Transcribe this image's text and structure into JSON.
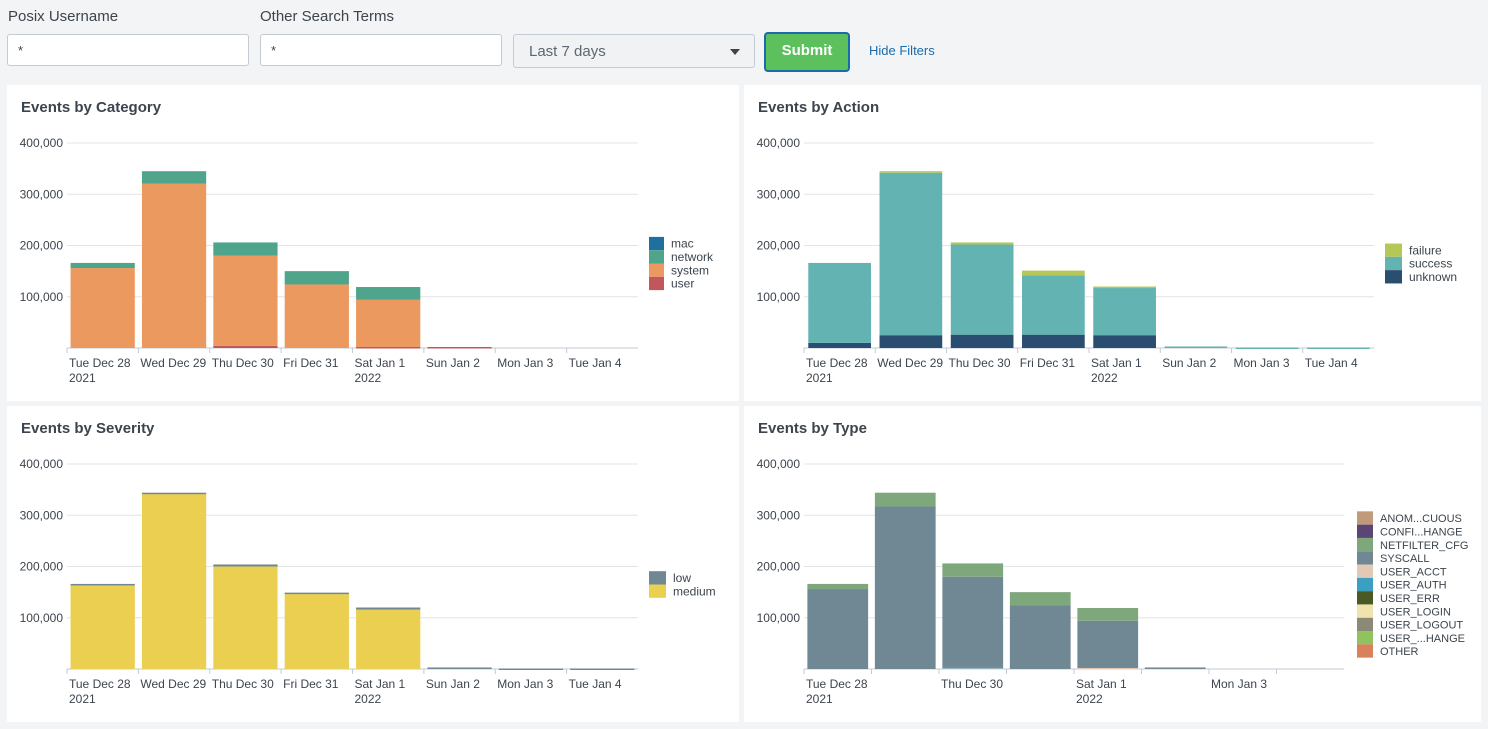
{
  "filters": {
    "username_label": "Posix Username",
    "username_value": "*",
    "search_label": "Other Search Terms",
    "search_value": "*",
    "time_range": "Last 7 days",
    "submit_label": "Submit",
    "hide_filters_label": "Hide Filters"
  },
  "panels": [
    {
      "title": "Events by Category"
    },
    {
      "title": "Events by Action"
    },
    {
      "title": "Events by Severity"
    },
    {
      "title": "Events by Type"
    }
  ],
  "chart_data": [
    {
      "type": "bar",
      "stacked": true,
      "title": "Events by Category",
      "ylim": [
        0,
        400000
      ],
      "yticks": [
        "100,000",
        "200,000",
        "300,000",
        "400,000"
      ],
      "categories": [
        [
          "Tue Dec 28",
          "2021"
        ],
        [
          "Wed Dec 29",
          ""
        ],
        [
          "Thu Dec 30",
          ""
        ],
        [
          "Fri Dec 31",
          ""
        ],
        [
          "Sat Jan 1",
          "2022"
        ],
        [
          "Sun Jan 2",
          ""
        ],
        [
          "Mon Jan 3",
          ""
        ],
        [
          "Tue Jan 4",
          ""
        ]
      ],
      "series": [
        {
          "name": "user",
          "color": "#c1575b",
          "values": [
            0,
            0,
            4000,
            0,
            2000,
            2000,
            0,
            0
          ]
        },
        {
          "name": "system",
          "color": "#ec9960",
          "values": [
            156000,
            321000,
            176000,
            124000,
            92000,
            0,
            0,
            0
          ]
        },
        {
          "name": "network",
          "color": "#4ea58b",
          "values": [
            10000,
            24000,
            26000,
            26000,
            25000,
            0,
            0,
            0
          ]
        },
        {
          "name": "mac",
          "color": "#1f6fa1",
          "values": [
            0,
            0,
            0,
            0,
            0,
            0,
            0,
            0
          ]
        }
      ],
      "legend": [
        "mac",
        "network",
        "system",
        "user"
      ]
    },
    {
      "type": "bar",
      "stacked": true,
      "title": "Events by Action",
      "ylim": [
        0,
        400000
      ],
      "yticks": [
        "100,000",
        "200,000",
        "300,000",
        "400,000"
      ],
      "categories": [
        [
          "Tue Dec 28",
          "2021"
        ],
        [
          "Wed Dec 29",
          ""
        ],
        [
          "Thu Dec 30",
          ""
        ],
        [
          "Fri Dec 31",
          ""
        ],
        [
          "Sat Jan 1",
          "2022"
        ],
        [
          "Sun Jan 2",
          ""
        ],
        [
          "Mon Jan 3",
          ""
        ],
        [
          "Tue Jan 4",
          ""
        ]
      ],
      "series": [
        {
          "name": "unknown",
          "color": "#294e70",
          "values": [
            10000,
            25000,
            26000,
            26000,
            25000,
            0,
            0,
            0
          ]
        },
        {
          "name": "success",
          "color": "#62b3b2",
          "values": [
            156000,
            317000,
            176000,
            116000,
            92000,
            3000,
            1000,
            1000
          ]
        },
        {
          "name": "failure",
          "color": "#b5c756",
          "values": [
            0,
            3000,
            4000,
            9000,
            3000,
            0,
            0,
            0
          ]
        }
      ],
      "legend": [
        "failure",
        "success",
        "unknown"
      ]
    },
    {
      "type": "bar",
      "stacked": true,
      "title": "Events by Severity",
      "ylim": [
        0,
        400000
      ],
      "yticks": [
        "100,000",
        "200,000",
        "300,000",
        "400,000"
      ],
      "categories": [
        [
          "Tue Dec 28",
          "2021"
        ],
        [
          "Wed Dec 29",
          ""
        ],
        [
          "Thu Dec 30",
          ""
        ],
        [
          "Fri Dec 31",
          ""
        ],
        [
          "Sat Jan 1",
          "2022"
        ],
        [
          "Sun Jan 2",
          ""
        ],
        [
          "Mon Jan 3",
          ""
        ],
        [
          "Tue Jan 4",
          ""
        ]
      ],
      "series": [
        {
          "name": "medium",
          "color": "#ebcf50",
          "values": [
            165000,
            342000,
            200000,
            147000,
            116000,
            0,
            0,
            0
          ]
        },
        {
          "name": "low",
          "color": "#708794",
          "values": [
            1000,
            2000,
            4000,
            2000,
            4000,
            3000,
            1000,
            1000
          ]
        }
      ],
      "legend": [
        "low",
        "medium"
      ]
    },
    {
      "type": "bar",
      "stacked": true,
      "title": "Events by Type",
      "ylim": [
        0,
        400000
      ],
      "yticks": [
        "100,000",
        "200,000",
        "300,000",
        "400,000"
      ],
      "categories": [
        [
          "Tue Dec 28",
          "2021"
        ],
        [
          "",
          ""
        ],
        [
          "Thu Dec 30",
          ""
        ],
        [
          "",
          ""
        ],
        [
          "Sat Jan 1",
          "2022"
        ],
        [
          "",
          ""
        ],
        [
          "Mon Jan 3",
          ""
        ],
        [
          "",
          ""
        ]
      ],
      "series": [
        {
          "name": "USER_ACCT",
          "color": "#e3c8b5",
          "values": [
            0,
            0,
            2000,
            0,
            2000,
            2000,
            0,
            0
          ]
        },
        {
          "name": "USER_AUTH",
          "color": "#3b9fc2",
          "values": [
            0,
            0,
            2000,
            0,
            0,
            0,
            0,
            0
          ]
        },
        {
          "name": "SYSCALL",
          "color": "#708794",
          "values": [
            156000,
            317000,
            176000,
            124000,
            92000,
            1000,
            0,
            0
          ]
        },
        {
          "name": "NETFILTER_CFG",
          "color": "#7ea77b",
          "values": [
            10000,
            27000,
            26000,
            26000,
            25000,
            0,
            0,
            0
          ]
        },
        {
          "name": "ANOM...CUOUS",
          "color": "#c19a7a",
          "values": [
            0,
            0,
            0,
            0,
            0,
            0,
            0,
            0
          ]
        },
        {
          "name": "CONFI...HANGE",
          "color": "#5a4575",
          "values": [
            0,
            0,
            0,
            0,
            0,
            0,
            0,
            0
          ]
        },
        {
          "name": "USER_ERR",
          "color": "#4a5a25",
          "values": [
            0,
            0,
            0,
            0,
            0,
            0,
            0,
            0
          ]
        },
        {
          "name": "USER_LOGIN",
          "color": "#f1e3ad",
          "values": [
            0,
            0,
            0,
            0,
            0,
            0,
            0,
            0
          ]
        },
        {
          "name": "USER_LOGOUT",
          "color": "#8b8a76",
          "values": [
            0,
            0,
            0,
            0,
            0,
            0,
            0,
            0
          ]
        },
        {
          "name": "USER_...HANGE",
          "color": "#8ec35e",
          "values": [
            0,
            0,
            0,
            0,
            0,
            0,
            0,
            0
          ]
        },
        {
          "name": "OTHER",
          "color": "#d9805c",
          "values": [
            0,
            0,
            0,
            0,
            0,
            0,
            0,
            0
          ]
        }
      ],
      "legend": [
        "ANOM...CUOUS",
        "CONFI...HANGE",
        "NETFILTER_CFG",
        "SYSCALL",
        "USER_ACCT",
        "USER_AUTH",
        "USER_ERR",
        "USER_LOGIN",
        "USER_LOGOUT",
        "USER_...HANGE",
        "OTHER"
      ]
    }
  ]
}
